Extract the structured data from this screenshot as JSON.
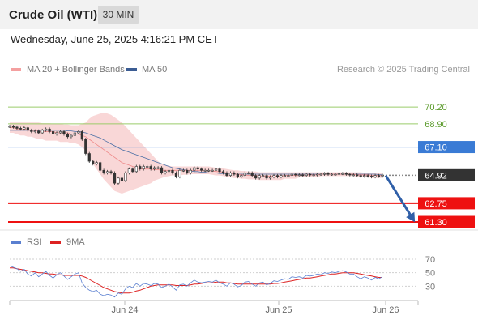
{
  "header": {
    "title": "Crude Oil (WTI)",
    "timeframe": "30 MIN",
    "datetime": "Wednesday, June 25, 2025 4:16:21 PM CET"
  },
  "colors": {
    "price": "#333333",
    "bollinger": "#f4b6b6",
    "ma20": "#ee8888",
    "ma50": "#4a6fa5",
    "resistance": "#9acc6a",
    "pivot": "#3a7bd5",
    "support": "#ee1111",
    "rsi": "#5a7fd0",
    "rsi_ma": "#dd2222"
  },
  "legend": {
    "ma20_label": "MA 20 + Bollinger Bands",
    "ma50_label": "MA 50",
    "copyright": "Research © 2025 Trading Central",
    "rsi_label": "RSI",
    "rsi_ma_label": "9MA"
  },
  "chart_data": [
    {
      "type": "line",
      "name": "price",
      "ylim": [
        60.8,
        71.4
      ],
      "x_ticks": [
        "Jun 24",
        "Jun 25",
        "Jun 26"
      ],
      "series": [
        {
          "name": "price",
          "values": [
            68.7,
            68.65,
            68.55,
            68.5,
            68.6,
            68.4,
            68.3,
            68.35,
            68.2,
            68.4,
            68.5,
            68.3,
            68.1,
            68.2,
            68.3,
            68.1,
            67.9,
            68.0,
            68.2,
            68.3,
            67.7,
            66.6,
            66.0,
            65.8,
            65.9,
            65.3,
            65.1,
            65.2,
            65.1,
            64.3,
            64.7,
            64.5,
            65.1,
            65.4,
            65.2,
            65.6,
            65.4,
            65.6,
            65.6,
            65.4,
            65.5,
            65.5,
            65.1,
            65.2,
            65.3,
            65.1,
            64.8,
            65.3,
            65.3,
            65.1,
            65.3,
            65.5,
            65.4,
            65.3,
            65.3,
            65.3,
            65.3,
            65.4,
            65.2,
            65.1,
            64.9,
            65.1,
            65.0,
            64.8,
            64.9,
            65.1,
            65.1,
            64.9,
            64.7,
            64.9,
            64.9,
            64.7,
            64.8,
            64.9,
            64.8,
            64.9,
            64.9,
            64.9,
            65.0,
            64.95,
            64.95,
            64.9,
            65.0,
            64.95,
            64.95,
            65.0,
            65.0,
            65.05,
            65.0,
            65.0,
            65.0,
            65.05,
            65.05,
            65.0,
            64.95,
            64.95,
            64.9,
            64.85,
            64.9,
            64.85,
            64.8,
            64.9,
            64.85,
            64.92
          ]
        },
        {
          "name": "MA 20",
          "values": [
            68.6,
            68.6,
            68.5,
            68.5,
            68.5,
            68.4,
            68.4,
            68.4,
            68.3,
            68.3,
            68.3,
            68.3,
            68.3,
            68.2,
            68.2,
            68.2,
            68.2,
            68.1,
            68.1,
            68.1,
            68.0,
            67.9,
            67.7,
            67.5,
            67.3,
            67.1,
            66.9,
            66.7,
            66.5,
            66.3,
            66.1,
            65.9,
            65.8,
            65.7,
            65.6,
            65.5,
            65.4,
            65.4,
            65.4,
            65.4,
            65.35,
            65.35,
            65.3,
            65.3,
            65.3,
            65.3,
            65.3,
            65.3,
            65.3,
            65.3,
            65.3,
            65.3,
            65.3,
            65.3,
            65.3,
            65.3,
            65.25,
            65.2,
            65.2,
            65.15,
            65.1,
            65.05,
            65.0,
            65.0,
            64.95,
            64.95,
            64.9,
            64.9,
            64.9,
            64.85,
            64.85,
            64.85,
            64.85,
            64.85,
            64.85,
            64.85,
            64.9,
            64.9,
            64.9,
            64.9,
            64.95,
            64.95,
            64.95,
            64.95,
            64.95,
            64.95,
            65.0,
            65.0,
            65.0,
            65.0,
            65.0,
            65.0,
            65.0,
            65.0,
            65.0,
            65.0,
            64.95,
            64.95,
            64.95,
            64.95,
            64.9,
            64.9,
            64.9,
            64.9
          ]
        },
        {
          "name": "MA 50",
          "values": [
            68.4,
            68.4,
            68.4,
            68.4,
            68.4,
            68.4,
            68.4,
            68.4,
            68.4,
            68.4,
            68.4,
            68.4,
            68.4,
            68.4,
            68.4,
            68.4,
            68.35,
            68.35,
            68.3,
            68.3,
            68.25,
            68.2,
            68.1,
            68.0,
            67.9,
            67.8,
            67.65,
            67.5,
            67.35,
            67.2,
            67.05,
            66.9,
            66.8,
            66.7,
            66.6,
            66.5,
            66.4,
            66.3,
            66.2,
            66.1,
            66.0,
            65.9,
            65.8,
            65.7,
            65.6,
            65.5,
            65.45,
            65.4,
            65.35,
            65.3,
            65.25,
            65.2,
            65.2,
            65.15,
            65.15,
            65.1,
            65.1,
            65.1,
            65.05,
            65.05,
            65.05,
            65.05,
            65.0,
            65.0,
            65.0,
            65.0,
            65.0,
            65.0,
            65.0,
            65.0,
            65.0,
            65.0,
            65.0,
            65.0,
            65.0,
            65.0,
            65.0,
            65.0,
            65.0,
            65.0,
            65.0,
            65.0,
            65.0,
            65.0,
            65.0,
            65.0,
            65.0,
            65.0,
            65.0,
            65.0,
            65.0,
            65.0,
            65.0,
            65.0,
            65.0,
            65.0,
            65.0,
            65.0,
            65.0,
            65.0,
            65.0,
            65.0,
            64.97,
            64.95
          ]
        },
        {
          "name": "BB upper",
          "values": [
            69.0,
            69.0,
            69.0,
            69.0,
            69.0,
            69.0,
            69.0,
            69.0,
            69.0,
            68.95,
            68.95,
            68.95,
            68.9,
            68.9,
            68.9,
            68.85,
            68.85,
            68.8,
            68.8,
            68.8,
            68.9,
            69.0,
            69.3,
            69.5,
            69.6,
            69.7,
            69.75,
            69.7,
            69.6,
            69.4,
            69.2,
            69.0,
            68.7,
            68.4,
            68.1,
            67.8,
            67.5,
            67.2,
            66.9,
            66.6,
            66.3,
            66.0,
            65.8,
            65.7,
            65.65,
            65.6,
            65.6,
            65.6,
            65.6,
            65.6,
            65.6,
            65.6,
            65.6,
            65.6,
            65.6,
            65.6,
            65.55,
            65.5,
            65.5,
            65.45,
            65.4,
            65.35,
            65.3,
            65.3,
            65.25,
            65.25,
            65.2,
            65.2,
            65.2,
            65.15,
            65.15,
            65.15,
            65.15,
            65.15,
            65.15,
            65.15,
            65.15,
            65.15,
            65.15,
            65.15,
            65.15,
            65.15,
            65.15,
            65.15,
            65.15,
            65.15,
            65.15,
            65.15,
            65.15,
            65.15,
            65.15,
            65.15,
            65.15,
            65.15,
            65.15,
            65.15,
            65.15,
            65.15,
            65.1,
            65.1,
            65.1,
            65.1,
            65.1,
            65.1
          ]
        },
        {
          "name": "BB lower",
          "values": [
            68.2,
            68.2,
            68.1,
            68.0,
            68.0,
            67.9,
            67.9,
            67.8,
            67.7,
            67.7,
            67.6,
            67.6,
            67.6,
            67.6,
            67.5,
            67.5,
            67.5,
            67.4,
            67.4,
            67.3,
            67.1,
            66.8,
            66.3,
            65.8,
            65.4,
            65.0,
            64.6,
            64.3,
            64.0,
            63.7,
            63.6,
            63.5,
            63.6,
            63.7,
            63.8,
            63.9,
            64.0,
            64.1,
            64.2,
            64.3,
            64.5,
            64.6,
            64.7,
            64.8,
            64.85,
            64.9,
            64.9,
            64.9,
            64.95,
            64.95,
            65.0,
            65.0,
            65.0,
            65.0,
            65.0,
            65.0,
            64.95,
            64.9,
            64.9,
            64.85,
            64.8,
            64.75,
            64.7,
            64.7,
            64.65,
            64.65,
            64.6,
            64.6,
            64.6,
            64.55,
            64.55,
            64.55,
            64.55,
            64.55,
            64.55,
            64.55,
            64.65,
            64.65,
            64.65,
            64.65,
            64.75,
            64.75,
            64.75,
            64.75,
            64.75,
            64.75,
            64.85,
            64.85,
            64.85,
            64.85,
            64.85,
            64.85,
            64.85,
            64.85,
            64.85,
            64.85,
            64.75,
            64.75,
            64.8,
            64.8,
            64.7,
            64.7,
            64.7,
            64.7
          ]
        }
      ],
      "levels": [
        {
          "value": 70.2,
          "label": "70.20",
          "kind": "resistance"
        },
        {
          "value": 68.9,
          "label": "68.90",
          "kind": "resistance"
        },
        {
          "value": 67.1,
          "label": "67.10",
          "kind": "pivot"
        },
        {
          "value": 64.92,
          "label": "64.92",
          "kind": "last"
        },
        {
          "value": 62.75,
          "label": "62.75",
          "kind": "support"
        },
        {
          "value": 61.3,
          "label": "61.30",
          "kind": "support"
        }
      ],
      "forecast_arrow": {
        "from_value": 64.9,
        "to_value": 61.5,
        "direction": "down"
      }
    },
    {
      "type": "line",
      "name": "rsi",
      "ylim": [
        10,
        82
      ],
      "y_ticks": [
        70,
        50,
        30
      ],
      "series": [
        {
          "name": "RSI",
          "values": [
            60,
            58,
            56,
            52,
            55,
            48,
            45,
            50,
            44,
            48,
            52,
            46,
            42,
            47,
            50,
            45,
            40,
            44,
            48,
            50,
            35,
            28,
            24,
            22,
            24,
            18,
            16,
            18,
            17,
            14,
            20,
            18,
            26,
            30,
            28,
            34,
            30,
            34,
            33,
            31,
            34,
            33,
            28,
            30,
            33,
            29,
            24,
            32,
            33,
            30,
            35,
            39,
            36,
            35,
            36,
            37,
            36,
            39,
            35,
            33,
            30,
            35,
            33,
            29,
            31,
            36,
            37,
            33,
            30,
            35,
            36,
            32,
            34,
            38,
            37,
            39,
            41,
            40,
            44,
            43,
            44,
            42,
            46,
            45,
            46,
            48,
            47,
            50,
            49,
            51,
            50,
            52,
            53,
            51,
            48,
            48,
            44,
            41,
            44,
            42,
            39,
            43,
            41,
            44
          ]
        },
        {
          "name": "9MA",
          "values": [
            57,
            57,
            56,
            55,
            54,
            53,
            52,
            51,
            50,
            50,
            49,
            48,
            48,
            47,
            47,
            46,
            46,
            46,
            46,
            46,
            45,
            43,
            40,
            37,
            34,
            31,
            28,
            26,
            24,
            22,
            21,
            20,
            20,
            20,
            21,
            23,
            24,
            26,
            28,
            30,
            31,
            32,
            32,
            32,
            32,
            32,
            31,
            31,
            31,
            31,
            32,
            33,
            33,
            34,
            35,
            35,
            35,
            36,
            36,
            36,
            35,
            35,
            34,
            33,
            33,
            33,
            33,
            33,
            33,
            33,
            33,
            33,
            33,
            34,
            34,
            35,
            36,
            37,
            38,
            39,
            40,
            41,
            42,
            42,
            43,
            44,
            45,
            46,
            47,
            48,
            48,
            49,
            50,
            50,
            50,
            50,
            49,
            48,
            47,
            46,
            45,
            44,
            43,
            43
          ]
        }
      ]
    }
  ]
}
